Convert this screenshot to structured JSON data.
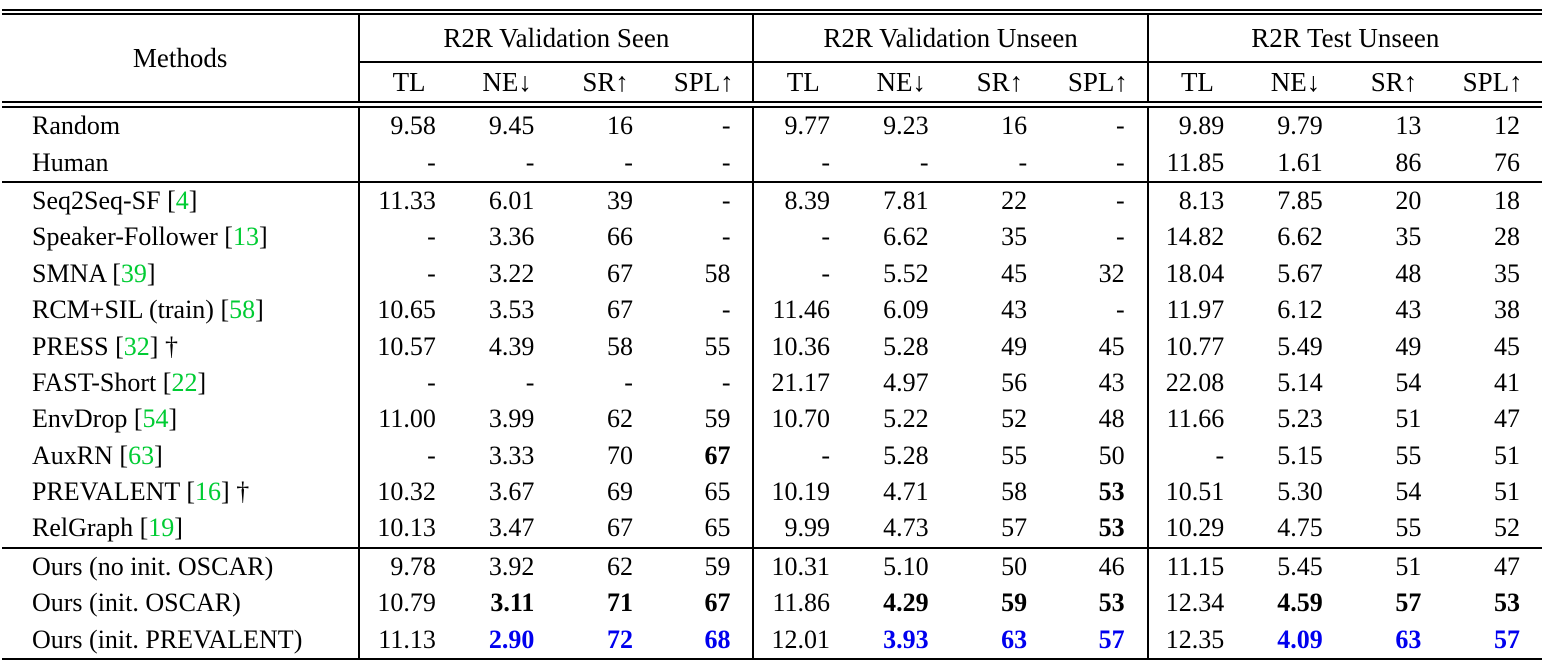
{
  "table": {
    "header": {
      "methods_label": "Methods",
      "sections": [
        {
          "label": "R2R Validation Seen"
        },
        {
          "label": "R2R Validation Unseen"
        },
        {
          "label": "R2R Test Unseen"
        }
      ],
      "metrics": [
        "TL",
        "NE↓",
        "SR↑",
        "SPL↑"
      ]
    },
    "symbols": {
      "cite_open": "[",
      "cite_close": "]",
      "dagger": "†"
    },
    "colors": {
      "citation_green": "#00CC33",
      "best_blue": "#0000EE",
      "text": "#000000"
    },
    "groups": [
      {
        "rows": [
          {
            "method": "Random",
            "cite": null,
            "dagger": false,
            "values": [
              "9.58",
              "9.45",
              "16",
              "-",
              "9.77",
              "9.23",
              "16",
              "-",
              "9.89",
              "9.79",
              "13",
              "12"
            ],
            "styles": [
              "",
              "",
              "",
              "",
              "",
              "",
              "",
              "",
              "",
              "",
              "",
              ""
            ]
          },
          {
            "method": "Human",
            "cite": null,
            "dagger": false,
            "values": [
              "-",
              "-",
              "-",
              "-",
              "-",
              "-",
              "-",
              "-",
              "11.85",
              "1.61",
              "86",
              "76"
            ],
            "styles": [
              "",
              "",
              "",
              "",
              "",
              "",
              "",
              "",
              "",
              "",
              "",
              ""
            ]
          }
        ]
      },
      {
        "rows": [
          {
            "method": "Seq2Seq-SF",
            "cite": "4",
            "dagger": false,
            "values": [
              "11.33",
              "6.01",
              "39",
              "-",
              "8.39",
              "7.81",
              "22",
              "-",
              "8.13",
              "7.85",
              "20",
              "18"
            ],
            "styles": [
              "",
              "",
              "",
              "",
              "",
              "",
              "",
              "",
              "",
              "",
              "",
              ""
            ]
          },
          {
            "method": "Speaker-Follower",
            "cite": "13",
            "dagger": false,
            "values": [
              "-",
              "3.36",
              "66",
              "-",
              "-",
              "6.62",
              "35",
              "-",
              "14.82",
              "6.62",
              "35",
              "28"
            ],
            "styles": [
              "",
              "",
              "",
              "",
              "",
              "",
              "",
              "",
              "",
              "",
              "",
              ""
            ]
          },
          {
            "method": "SMNA",
            "cite": "39",
            "dagger": false,
            "values": [
              "-",
              "3.22",
              "67",
              "58",
              "-",
              "5.52",
              "45",
              "32",
              "18.04",
              "5.67",
              "48",
              "35"
            ],
            "styles": [
              "",
              "",
              "",
              "",
              "",
              "",
              "",
              "",
              "",
              "",
              "",
              ""
            ]
          },
          {
            "method": "RCM+SIL (train)",
            "cite": "58",
            "dagger": false,
            "values": [
              "10.65",
              "3.53",
              "67",
              "-",
              "11.46",
              "6.09",
              "43",
              "-",
              "11.97",
              "6.12",
              "43",
              "38"
            ],
            "styles": [
              "",
              "",
              "",
              "",
              "",
              "",
              "",
              "",
              "",
              "",
              "",
              ""
            ]
          },
          {
            "method": "PRESS",
            "cite": "32",
            "dagger": true,
            "values": [
              "10.57",
              "4.39",
              "58",
              "55",
              "10.36",
              "5.28",
              "49",
              "45",
              "10.77",
              "5.49",
              "49",
              "45"
            ],
            "styles": [
              "",
              "",
              "",
              "",
              "",
              "",
              "",
              "",
              "",
              "",
              "",
              ""
            ]
          },
          {
            "method": "FAST-Short",
            "cite": "22",
            "dagger": false,
            "values": [
              "-",
              "-",
              "-",
              "-",
              "21.17",
              "4.97",
              "56",
              "43",
              "22.08",
              "5.14",
              "54",
              "41"
            ],
            "styles": [
              "",
              "",
              "",
              "",
              "",
              "",
              "",
              "",
              "",
              "",
              "",
              ""
            ]
          },
          {
            "method": "EnvDrop",
            "cite": "54",
            "dagger": false,
            "values": [
              "11.00",
              "3.99",
              "62",
              "59",
              "10.70",
              "5.22",
              "52",
              "48",
              "11.66",
              "5.23",
              "51",
              "47"
            ],
            "styles": [
              "",
              "",
              "",
              "",
              "",
              "",
              "",
              "",
              "",
              "",
              "",
              ""
            ]
          },
          {
            "method": "AuxRN",
            "cite": "63",
            "dagger": false,
            "values": [
              "-",
              "3.33",
              "70",
              "67",
              "-",
              "5.28",
              "55",
              "50",
              "-",
              "5.15",
              "55",
              "51"
            ],
            "styles": [
              "",
              "",
              "",
              "b",
              "",
              "",
              "",
              "",
              "",
              "",
              "",
              ""
            ]
          },
          {
            "method": "PREVALENT",
            "cite": "16",
            "dagger": true,
            "values": [
              "10.32",
              "3.67",
              "69",
              "65",
              "10.19",
              "4.71",
              "58",
              "53",
              "10.51",
              "5.30",
              "54",
              "51"
            ],
            "styles": [
              "",
              "",
              "",
              "",
              "",
              "",
              "",
              "b",
              "",
              "",
              "",
              ""
            ]
          },
          {
            "method": "RelGraph",
            "cite": "19",
            "dagger": false,
            "values": [
              "10.13",
              "3.47",
              "67",
              "65",
              "9.99",
              "4.73",
              "57",
              "53",
              "10.29",
              "4.75",
              "55",
              "52"
            ],
            "styles": [
              "",
              "",
              "",
              "",
              "",
              "",
              "",
              "b",
              "",
              "",
              "",
              ""
            ]
          }
        ]
      },
      {
        "rows": [
          {
            "method": "Ours (no init. OSCAR)",
            "cite": null,
            "dagger": false,
            "values": [
              "9.78",
              "3.92",
              "62",
              "59",
              "10.31",
              "5.10",
              "50",
              "46",
              "11.15",
              "5.45",
              "51",
              "47"
            ],
            "styles": [
              "",
              "",
              "",
              "",
              "",
              "",
              "",
              "",
              "",
              "",
              "",
              ""
            ]
          },
          {
            "method": "Ours (init. OSCAR)",
            "cite": null,
            "dagger": false,
            "values": [
              "10.79",
              "3.11",
              "71",
              "67",
              "11.86",
              "4.29",
              "59",
              "53",
              "12.34",
              "4.59",
              "57",
              "53"
            ],
            "styles": [
              "",
              "b",
              "b",
              "b",
              "",
              "b",
              "b",
              "b",
              "",
              "b",
              "b",
              "b"
            ]
          },
          {
            "method": "Ours (init. PREVALENT)",
            "cite": null,
            "dagger": false,
            "values": [
              "11.13",
              "2.90",
              "72",
              "68",
              "12.01",
              "3.93",
              "63",
              "57",
              "12.35",
              "4.09",
              "63",
              "57"
            ],
            "styles": [
              "",
              "bb",
              "bb",
              "bb",
              "",
              "bb",
              "bb",
              "bb",
              "",
              "bb",
              "bb",
              "bb"
            ]
          }
        ]
      }
    ]
  }
}
